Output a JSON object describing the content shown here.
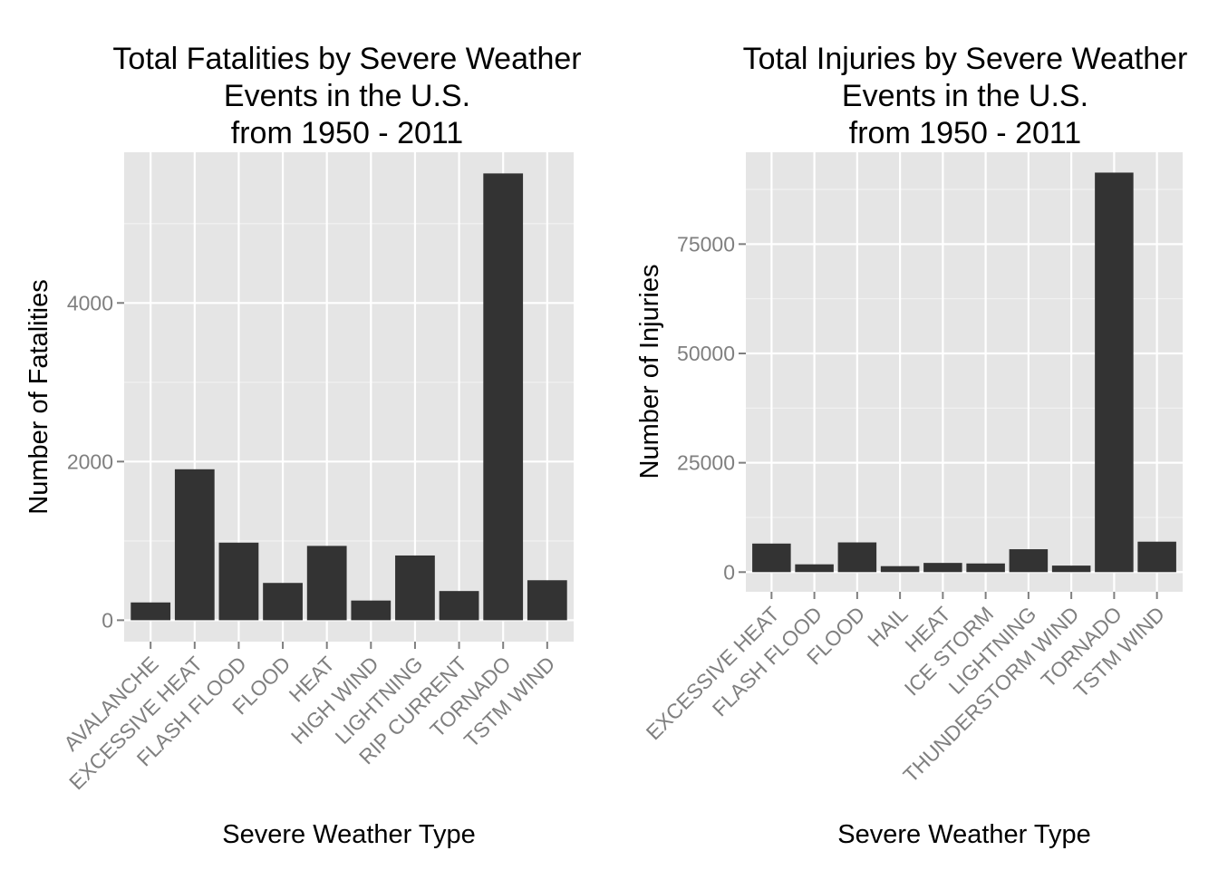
{
  "chart_data": [
    {
      "type": "bar",
      "title": [
        "Total Fatalities by Severe Weather",
        "Events in the U.S.",
        "from 1950 - 2011"
      ],
      "xlabel": "Severe Weather Type",
      "ylabel": "Number of Fatalities",
      "categories": [
        "AVALANCHE",
        "EXCESSIVE HEAT",
        "FLASH FLOOD",
        "FLOOD",
        "HEAT",
        "HIGH WIND",
        "LIGHTNING",
        "RIP CURRENT",
        "TORNADO",
        "TSTM WIND"
      ],
      "values": [
        224,
        1903,
        978,
        470,
        937,
        248,
        816,
        368,
        5633,
        504
      ],
      "ylim": [
        -270,
        5900
      ],
      "yticks": [
        0,
        2000,
        4000
      ],
      "ytick_labels": [
        "0",
        "2000",
        "4000"
      ],
      "grid": true,
      "bar_color": "#333333",
      "panel_color": "#e5e5e5"
    },
    {
      "type": "bar",
      "title": [
        "Total Injuries by Severe Weather",
        "Events in the U.S.",
        "from 1950 - 2011"
      ],
      "xlabel": "Severe Weather Type",
      "ylabel": "Number of Injuries",
      "categories": [
        "EXCESSIVE HEAT",
        "FLASH FLOOD",
        "FLOOD",
        "HAIL",
        "HEAT",
        "ICE STORM",
        "LIGHTNING",
        "THUNDERSTORM WIND",
        "TORNADO",
        "TSTM WIND"
      ],
      "values": [
        6525,
        1777,
        6789,
        1361,
        2100,
        1975,
        5230,
        1488,
        91346,
        6957
      ],
      "ylim": [
        -4500,
        96000
      ],
      "yticks": [
        0,
        25000,
        50000,
        75000
      ],
      "ytick_labels": [
        "0",
        "25000",
        "50000",
        "75000"
      ],
      "grid": true,
      "bar_color": "#333333",
      "panel_color": "#e5e5e5"
    }
  ]
}
